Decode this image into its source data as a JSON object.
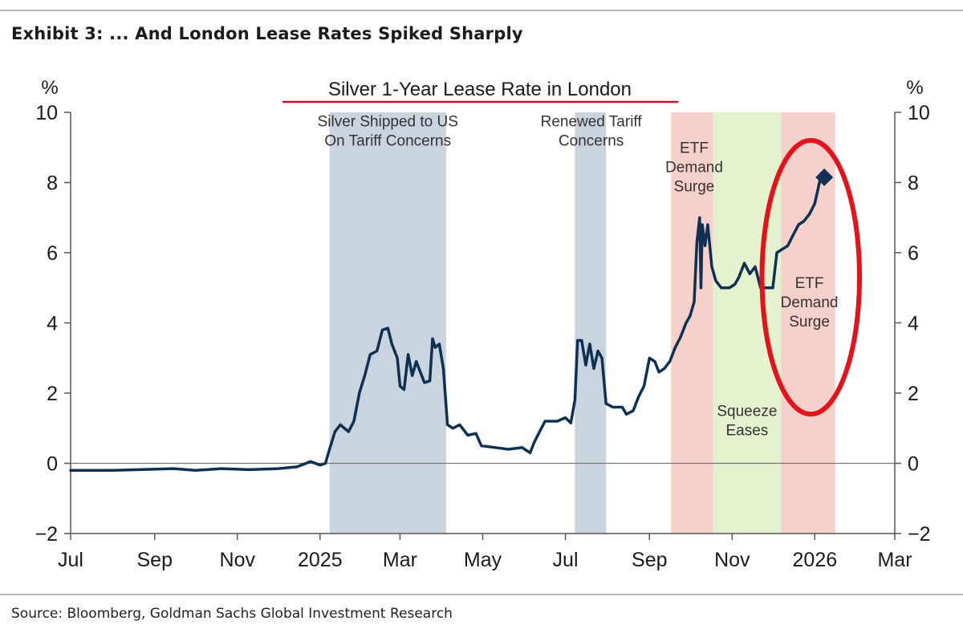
{
  "exhibit_title": "Exhibit 3: ... And London Lease Rates Spiked Sharply",
  "source": "Source: Bloomberg, Goldman Sachs Global Investment Research",
  "colors": {
    "line": "#0e3153",
    "blue_band": "#c9d4de",
    "red_band": "#f6d0ca",
    "green_band": "#e4f2cf",
    "highlight": "#e3121b",
    "title_underline": "#c8102e"
  },
  "chart_data": {
    "type": "line",
    "title": "Silver 1-Year Lease Rate in London",
    "ylabel_left": "%",
    "ylabel_right": "%",
    "ylim": [
      -2,
      10
    ],
    "yticks": [
      -2,
      0,
      2,
      4,
      6,
      8,
      10
    ],
    "xlim": [
      "2024-07-01",
      "2026-03-01"
    ],
    "xticks": [
      {
        "date": "2024-07-01",
        "label": "Jul"
      },
      {
        "date": "2024-09-01",
        "label": "Sep"
      },
      {
        "date": "2024-11-01",
        "label": "Nov"
      },
      {
        "date": "2025-01-01",
        "label": "2025"
      },
      {
        "date": "2025-03-01",
        "label": "Mar"
      },
      {
        "date": "2025-05-01",
        "label": "May"
      },
      {
        "date": "2025-07-01",
        "label": "Jul"
      },
      {
        "date": "2025-09-01",
        "label": "Sep"
      },
      {
        "date": "2025-11-01",
        "label": "Nov"
      },
      {
        "date": "2026-01-01",
        "label": "2026"
      },
      {
        "date": "2026-03-01",
        "label": "Mar"
      }
    ],
    "bands": [
      {
        "start": "2025-01-08",
        "end": "2025-04-04",
        "color": "blue",
        "label": [
          "Silver Shipped to US",
          "On Tariff Concerns"
        ],
        "label_date": "2025-02-20",
        "label_y": 9.6
      },
      {
        "start": "2025-07-08",
        "end": "2025-07-31",
        "color": "blue",
        "label": [
          "Renewed Tariff",
          "Concerns"
        ],
        "label_date": "2025-07-20",
        "label_y": 9.6
      },
      {
        "start": "2025-09-17",
        "end": "2025-10-18",
        "color": "red",
        "label": [
          "ETF",
          "Demand",
          "Surge"
        ],
        "label_date": "2025-10-04",
        "label_y": 8.85
      },
      {
        "start": "2025-10-18",
        "end": "2025-12-07",
        "color": "green",
        "label": [
          "Squeeze",
          "Eases"
        ],
        "label_date": "2025-11-12",
        "label_y": 1.35
      },
      {
        "start": "2025-12-07",
        "end": "2026-01-16",
        "color": "red",
        "label": [
          "ETF",
          "Demand",
          "Surge"
        ],
        "label_date": "2025-12-28",
        "label_y": 5.0
      }
    ],
    "series": [
      {
        "values": [
          [
            "2024-07-01",
            -0.2
          ],
          [
            "2024-08-01",
            -0.2
          ],
          [
            "2024-08-20",
            -0.18
          ],
          [
            "2024-09-15",
            -0.15
          ],
          [
            "2024-10-01",
            -0.2
          ],
          [
            "2024-10-20",
            -0.15
          ],
          [
            "2024-11-10",
            -0.18
          ],
          [
            "2024-12-01",
            -0.15
          ],
          [
            "2024-12-15",
            -0.1
          ],
          [
            "2024-12-25",
            0.05
          ],
          [
            "2025-01-01",
            -0.05
          ],
          [
            "2025-01-05",
            0.0
          ],
          [
            "2025-01-08",
            0.4
          ],
          [
            "2025-01-12",
            0.9
          ],
          [
            "2025-01-16",
            1.1
          ],
          [
            "2025-01-22",
            0.9
          ],
          [
            "2025-01-26",
            1.2
          ],
          [
            "2025-01-30",
            2.0
          ],
          [
            "2025-02-03",
            2.5
          ],
          [
            "2025-02-07",
            3.1
          ],
          [
            "2025-02-12",
            3.2
          ],
          [
            "2025-02-16",
            3.8
          ],
          [
            "2025-02-20",
            3.85
          ],
          [
            "2025-02-23",
            3.4
          ],
          [
            "2025-02-27",
            3.0
          ],
          [
            "2025-03-01",
            2.2
          ],
          [
            "2025-03-04",
            2.1
          ],
          [
            "2025-03-07",
            3.1
          ],
          [
            "2025-03-10",
            2.5
          ],
          [
            "2025-03-13",
            2.9
          ],
          [
            "2025-03-16",
            2.6
          ],
          [
            "2025-03-19",
            2.3
          ],
          [
            "2025-03-23",
            2.35
          ],
          [
            "2025-03-25",
            3.55
          ],
          [
            "2025-03-27",
            3.3
          ],
          [
            "2025-03-30",
            3.4
          ],
          [
            "2025-04-02",
            2.7
          ],
          [
            "2025-04-05",
            1.1
          ],
          [
            "2025-04-09",
            1.0
          ],
          [
            "2025-04-14",
            1.1
          ],
          [
            "2025-04-20",
            0.8
          ],
          [
            "2025-04-26",
            0.85
          ],
          [
            "2025-04-30",
            0.5
          ],
          [
            "2025-05-10",
            0.45
          ],
          [
            "2025-05-20",
            0.4
          ],
          [
            "2025-05-30",
            0.45
          ],
          [
            "2025-06-05",
            0.3
          ],
          [
            "2025-06-08",
            0.6
          ],
          [
            "2025-06-12",
            0.9
          ],
          [
            "2025-06-16",
            1.2
          ],
          [
            "2025-06-25",
            1.2
          ],
          [
            "2025-07-01",
            1.3
          ],
          [
            "2025-07-05",
            1.15
          ],
          [
            "2025-07-08",
            1.8
          ],
          [
            "2025-07-10",
            3.5
          ],
          [
            "2025-07-13",
            3.5
          ],
          [
            "2025-07-16",
            2.8
          ],
          [
            "2025-07-19",
            3.4
          ],
          [
            "2025-07-22",
            2.7
          ],
          [
            "2025-07-25",
            3.2
          ],
          [
            "2025-07-28",
            3.0
          ],
          [
            "2025-07-31",
            1.7
          ],
          [
            "2025-08-05",
            1.6
          ],
          [
            "2025-08-12",
            1.6
          ],
          [
            "2025-08-15",
            1.4
          ],
          [
            "2025-08-20",
            1.5
          ],
          [
            "2025-08-24",
            1.9
          ],
          [
            "2025-08-28",
            2.2
          ],
          [
            "2025-09-01",
            3.0
          ],
          [
            "2025-09-05",
            2.9
          ],
          [
            "2025-09-08",
            2.6
          ],
          [
            "2025-09-12",
            2.7
          ],
          [
            "2025-09-16",
            2.9
          ],
          [
            "2025-09-20",
            3.3
          ],
          [
            "2025-09-24",
            3.6
          ],
          [
            "2025-09-28",
            4.0
          ],
          [
            "2025-10-01",
            4.2
          ],
          [
            "2025-10-04",
            4.6
          ],
          [
            "2025-10-06",
            6.3
          ],
          [
            "2025-10-08",
            7.0
          ],
          [
            "2025-10-09",
            5.0
          ],
          [
            "2025-10-10",
            6.8
          ],
          [
            "2025-10-12",
            6.2
          ],
          [
            "2025-10-14",
            6.8
          ],
          [
            "2025-10-17",
            5.6
          ],
          [
            "2025-10-20",
            5.2
          ],
          [
            "2025-10-24",
            5.0
          ],
          [
            "2025-10-30",
            5.0
          ],
          [
            "2025-11-03",
            5.1
          ],
          [
            "2025-11-06",
            5.3
          ],
          [
            "2025-11-10",
            5.7
          ],
          [
            "2025-11-14",
            5.4
          ],
          [
            "2025-11-18",
            5.6
          ],
          [
            "2025-11-22",
            5.0
          ],
          [
            "2025-11-27",
            5.0
          ],
          [
            "2025-12-01",
            5.0
          ],
          [
            "2025-12-04",
            6.0
          ],
          [
            "2025-12-08",
            6.1
          ],
          [
            "2025-12-12",
            6.2
          ],
          [
            "2025-12-16",
            6.5
          ],
          [
            "2025-12-20",
            6.8
          ],
          [
            "2025-12-24",
            6.9
          ],
          [
            "2025-12-28",
            7.1
          ],
          [
            "2026-01-01",
            7.4
          ],
          [
            "2026-01-05",
            8.1
          ]
        ],
        "last_marker": [
          "2026-01-08",
          8.15
        ]
      }
    ],
    "annotations": [
      {
        "type": "ellipse",
        "center": [
          "2025-12-29",
          5.3
        ],
        "radius_days": 36,
        "radius_value": 3.9
      }
    ],
    "zero_line": true,
    "grid": false
  }
}
